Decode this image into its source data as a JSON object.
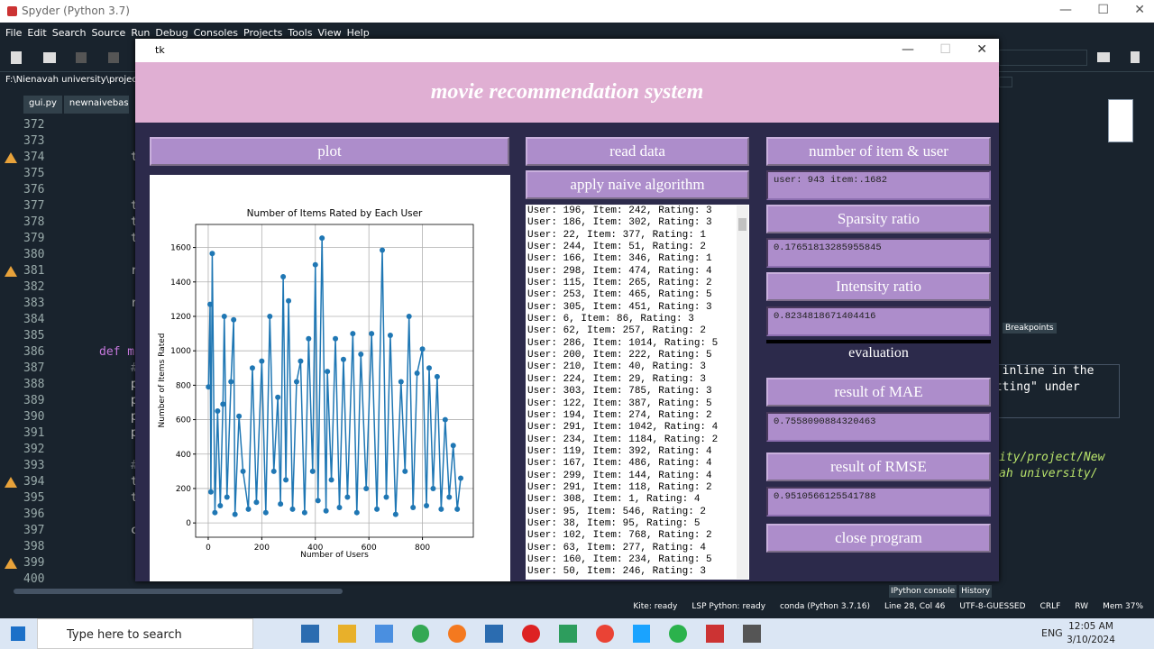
{
  "app": {
    "title": "Spyder (Python 3.7)",
    "menu": [
      "File",
      "Edit",
      "Search",
      "Source",
      "Run",
      "Debug",
      "Consoles",
      "Projects",
      "Tools",
      "View",
      "Help"
    ],
    "path": "F:\\Nienavah university\\project\\New fo",
    "tabs": [
      "gui.py",
      "newnaivebasel"
    ]
  },
  "editor": {
    "lines": [
      {
        "number": 372
      },
      {
        "number": 373
      },
      {
        "number": 374,
        "code": "t",
        "warning": true
      },
      {
        "number": 375
      },
      {
        "number": 376
      },
      {
        "number": 377,
        "code": "t"
      },
      {
        "number": 378,
        "code": "t"
      },
      {
        "number": 379,
        "code": "t"
      },
      {
        "number": 380
      },
      {
        "number": 381,
        "code": "r",
        "warning": true
      },
      {
        "number": 382
      },
      {
        "number": 383,
        "code": "r"
      },
      {
        "number": 384
      },
      {
        "number": 385
      },
      {
        "number": 386,
        "code": "def m"
      },
      {
        "number": 387,
        "code": "#"
      },
      {
        "number": 388,
        "code": "p"
      },
      {
        "number": 389,
        "code": "p"
      },
      {
        "number": 390,
        "code": "p"
      },
      {
        "number": 391,
        "code": "p"
      },
      {
        "number": 392
      },
      {
        "number": 393,
        "code": "#"
      },
      {
        "number": 394,
        "code": "t",
        "warning": true
      },
      {
        "number": 395,
        "code": "t"
      },
      {
        "number": 396
      },
      {
        "number": 397,
        "code": "c"
      },
      {
        "number": 398
      },
      {
        "number": 399,
        "warning": true
      },
      {
        "number": 400
      }
    ]
  },
  "right_pane": {
    "console_text": [
      "r inline in the",
      "otting\" under"
    ],
    "italic_text": [
      "ity/project/New",
      "ah university/"
    ],
    "tabs": [
      "IPython console",
      "History"
    ],
    "breakpoints": "Breakpoints"
  },
  "status_bar": [
    "Kite: ready",
    "LSP Python: ready",
    "conda (Python 3.7.16)",
    "Line 28, Col 46",
    "UTF-8-GUESSED",
    "CRLF",
    "RW",
    "Mem 37%"
  ],
  "taskbar": {
    "search": "Type here to search",
    "language": "ENG",
    "time": "12:05 AM",
    "date": "3/10/2024"
  },
  "tk": {
    "title": "tk",
    "header": "movie recommendation system",
    "buttons": {
      "plot": "plot",
      "read_data": "read data",
      "apply": "apply naive algorithm",
      "count": "number of item & user",
      "sparsity": "Sparsity ratio",
      "intensity": "Intensity ratio",
      "mae": "result of MAE",
      "rmse": "result of RMSE",
      "close": "close program"
    },
    "outputs": {
      "count": "user: 943 item:.1682",
      "sparsity": "0.17651813285955845",
      "intensity": "0.8234818671404416",
      "mae": "0.7558090884320463",
      "rmse": "0.9510566125541788"
    },
    "evaluation": "evaluation",
    "ratings": [
      "User: 196, Item: 242, Rating: 3",
      "User: 186, Item: 302, Rating: 3",
      "User: 22, Item: 377, Rating: 1",
      "User: 244, Item: 51, Rating: 2",
      "User: 166, Item: 346, Rating: 1",
      "User: 298, Item: 474, Rating: 4",
      "User: 115, Item: 265, Rating: 2",
      "User: 253, Item: 465, Rating: 5",
      "User: 305, Item: 451, Rating: 3",
      "User: 6, Item: 86, Rating: 3",
      "User: 62, Item: 257, Rating: 2",
      "User: 286, Item: 1014, Rating: 5",
      "User: 200, Item: 222, Rating: 5",
      "User: 210, Item: 40, Rating: 3",
      "User: 224, Item: 29, Rating: 3",
      "User: 303, Item: 785, Rating: 3",
      "User: 122, Item: 387, Rating: 5",
      "User: 194, Item: 274, Rating: 2",
      "User: 291, Item: 1042, Rating: 4",
      "User: 234, Item: 1184, Rating: 2",
      "User: 119, Item: 392, Rating: 4",
      "User: 167, Item: 486, Rating: 4",
      "User: 299, Item: 144, Rating: 4",
      "User: 291, Item: 118, Rating: 2",
      "User: 308, Item: 1, Rating: 4",
      "User: 95, Item: 546, Rating: 2",
      "User: 38, Item: 95, Rating: 5",
      "User: 102, Item: 768, Rating: 2",
      "User: 63, Item: 277, Rating: 4",
      "User: 160, Item: 234, Rating: 5",
      "User: 50, Item: 246, Rating: 3"
    ]
  },
  "chart_data": {
    "type": "line",
    "title": "Number of Items Rated by Each User",
    "x_label": "Number of Users",
    "y_label": "Number of Items Rated",
    "color": "#1f77b4",
    "grid": true,
    "markers": true,
    "x": [
      1,
      7,
      10,
      15,
      25,
      35,
      45,
      55,
      60,
      70,
      85,
      95,
      100,
      115,
      130,
      150,
      165,
      180,
      200,
      215,
      230,
      245,
      260,
      270,
      280,
      290,
      300,
      315,
      330,
      345,
      360,
      375,
      390,
      400,
      410,
      425,
      440,
      445,
      460,
      475,
      490,
      505,
      520,
      540,
      555,
      570,
      590,
      610,
      630,
      650,
      665,
      680,
      700,
      720,
      735,
      750,
      765,
      780,
      800,
      815,
      825,
      840,
      855,
      870,
      885,
      900,
      915,
      930,
      943
    ],
    "values": [
      790,
      1270,
      180,
      1565,
      60,
      650,
      100,
      690,
      1200,
      150,
      820,
      1180,
      50,
      620,
      300,
      80,
      900,
      120,
      940,
      60,
      1200,
      300,
      730,
      110,
      1430,
      250,
      1290,
      80,
      820,
      940,
      60,
      1070,
      300,
      1500,
      130,
      1655,
      70,
      880,
      250,
      1070,
      90,
      950,
      150,
      1100,
      60,
      980,
      200,
      1100,
      80,
      1585,
      150,
      1090,
      50,
      820,
      300,
      1200,
      90,
      870,
      1010,
      100,
      900,
      200,
      850,
      80,
      600,
      150,
      450,
      80,
      260
    ],
    "xlim": [
      -47,
      990
    ],
    "ylim": [
      -83,
      1734
    ],
    "xticks": [
      0,
      200,
      400,
      600,
      800
    ],
    "yticks": [
      0,
      200,
      400,
      600,
      800,
      1000,
      1200,
      1400,
      1600
    ]
  }
}
